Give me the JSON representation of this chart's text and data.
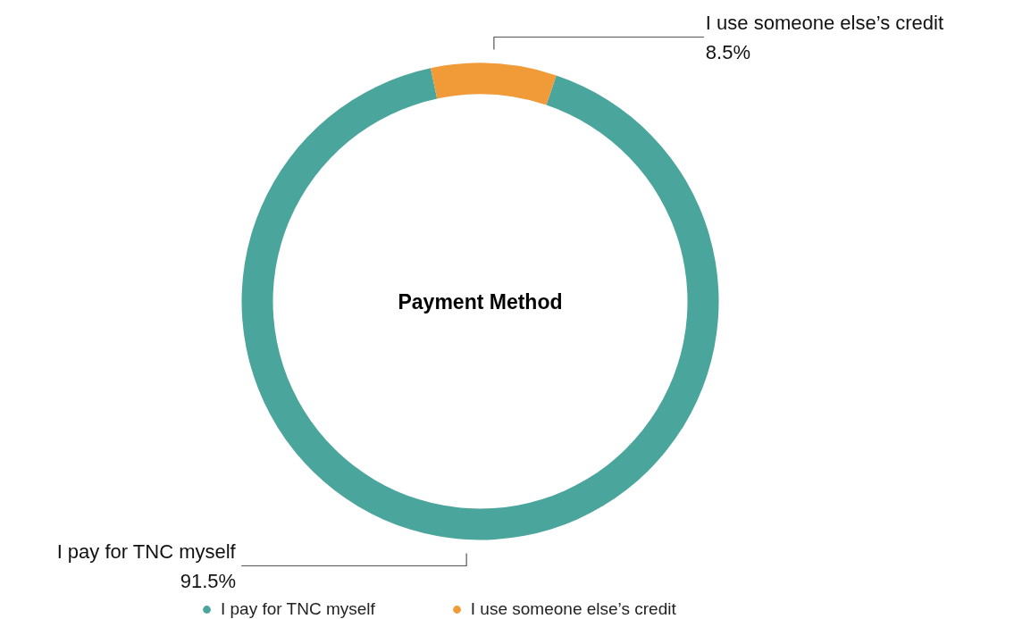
{
  "chart_data": {
    "type": "donut",
    "title": "Payment Method",
    "categories": [
      "I pay for TNC myself",
      "I use someone else’s credit"
    ],
    "values": [
      91.5,
      8.5
    ],
    "colors": [
      "#4aa59c",
      "#f09a38"
    ],
    "value_labels": [
      "91.5%",
      "8.5%"
    ],
    "legend": "bottom"
  }
}
